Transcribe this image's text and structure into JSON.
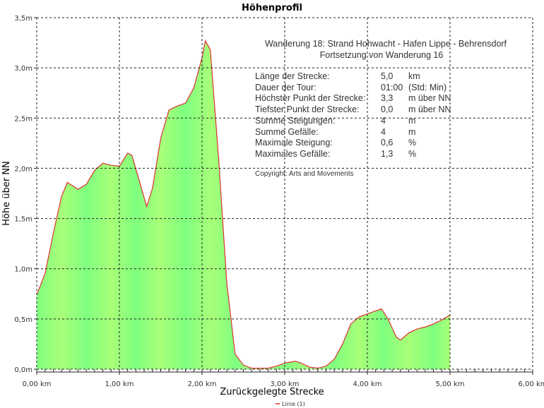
{
  "chart_data": {
    "type": "area",
    "title": "Höhenprofil",
    "xlabel": "Zurückgelegte Strecke",
    "ylabel": "Höhe über NN",
    "xlim": [
      0,
      6
    ],
    "ylim": [
      0,
      3.5
    ],
    "x_ticks": [
      "0,00 km",
      "1,00 km",
      "2,00 km",
      "3,00 km",
      "4,00 km",
      "5,00 km",
      "6,00 km"
    ],
    "y_ticks": [
      "0,0m",
      "0,5m",
      "1,0m",
      "1,5m",
      "2,0m",
      "2,5m",
      "3,0m",
      "3,5m"
    ],
    "grid": true,
    "legend": {
      "position": "bottom-center",
      "entries": [
        "Linie (1)"
      ]
    },
    "series": [
      {
        "name": "Linie (1)",
        "line_color": "#e03030",
        "fill_color": "#80ff80",
        "x": [
          0,
          0.1,
          0.2,
          0.3,
          0.37,
          0.5,
          0.6,
          0.7,
          0.8,
          0.9,
          1.0,
          1.1,
          1.15,
          1.25,
          1.33,
          1.4,
          1.5,
          1.6,
          1.7,
          1.8,
          1.9,
          2.0,
          2.04,
          2.1,
          2.2,
          2.3,
          2.4,
          2.5,
          2.6,
          2.8,
          2.9,
          3.0,
          3.13,
          3.2,
          3.3,
          3.4,
          3.5,
          3.6,
          3.7,
          3.8,
          3.9,
          4.0,
          4.1,
          4.17,
          4.25,
          4.35,
          4.4,
          4.5,
          4.6,
          4.7,
          4.8,
          4.9,
          5.0
        ],
        "y": [
          0.74,
          0.95,
          1.35,
          1.72,
          1.86,
          1.79,
          1.84,
          1.98,
          2.05,
          2.03,
          2.02,
          2.15,
          2.13,
          1.85,
          1.62,
          1.8,
          2.3,
          2.58,
          2.62,
          2.65,
          2.8,
          3.1,
          3.27,
          3.18,
          2.1,
          0.85,
          0.15,
          0.04,
          0.01,
          0.01,
          0.03,
          0.06,
          0.08,
          0.06,
          0.02,
          0.01,
          0.03,
          0.1,
          0.25,
          0.45,
          0.52,
          0.55,
          0.58,
          0.6,
          0.5,
          0.32,
          0.29,
          0.36,
          0.4,
          0.42,
          0.45,
          0.49,
          0.54
        ]
      }
    ]
  },
  "info": {
    "heading1": "Wanderung 18: Strand Hohwacht - Hafen Lippe - Behrensdorf",
    "heading2": "Fortsetzung von Wanderung 16",
    "rows": [
      {
        "label": "Länge der Strecke:",
        "value": "5,0",
        "unit": "km"
      },
      {
        "label": "Dauer der Tour:",
        "value": "01:00",
        "unit": "(Std: Min)"
      },
      {
        "label": "Höchster Punkt der Strecke:",
        "value": "3,3",
        "unit": "m über NN"
      },
      {
        "label": "Tiefster Punkt der Strecke:",
        "value": "0,0",
        "unit": "m über NN"
      },
      {
        "label": "Summe Steigungen:",
        "value": "4",
        "unit": "m"
      },
      {
        "label": "Summe Gefälle:",
        "value": "4",
        "unit": "m"
      },
      {
        "label": "Maximale Steigung:",
        "value": "0,6",
        "unit": "%"
      },
      {
        "label": "Maximales Gefälle:",
        "value": "1,3",
        "unit": "%"
      }
    ],
    "copyright": "Copyright: Arts and Movements"
  }
}
